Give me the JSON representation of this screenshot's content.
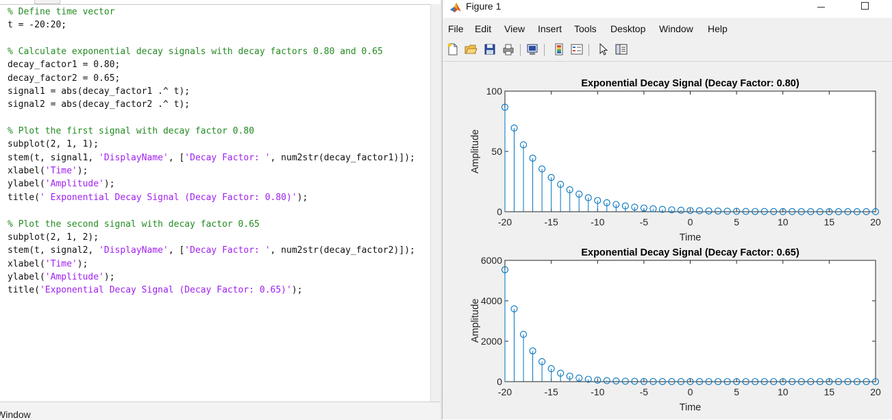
{
  "editor": {
    "lines": [
      [
        {
          "t": "% Define time vector",
          "c": "comment"
        }
      ],
      [
        {
          "t": "t = -20:20;",
          "c": "code"
        }
      ],
      [
        {
          "t": "",
          "c": "code"
        }
      ],
      [
        {
          "t": "% Calculate exponential decay signals with decay factors 0.80 and 0.65",
          "c": "comment"
        }
      ],
      [
        {
          "t": "decay_factor1 = 0.80;",
          "c": "code"
        }
      ],
      [
        {
          "t": "decay_factor2 = 0.65;",
          "c": "code"
        }
      ],
      [
        {
          "t": "signal1 = abs(decay_factor1 .^ t);",
          "c": "code"
        }
      ],
      [
        {
          "t": "signal2 = abs(decay_factor2 .^ t);",
          "c": "code"
        }
      ],
      [
        {
          "t": "",
          "c": "code"
        }
      ],
      [
        {
          "t": "% Plot the first signal with decay factor 0.80",
          "c": "comment"
        }
      ],
      [
        {
          "t": "subplot(2, 1, 1);",
          "c": "code"
        }
      ],
      [
        {
          "t": "stem(t, signal1, ",
          "c": "code"
        },
        {
          "t": "'DisplayName'",
          "c": "string"
        },
        {
          "t": ", [",
          "c": "code"
        },
        {
          "t": "'Decay Factor: '",
          "c": "string"
        },
        {
          "t": ", num2str(decay_factor1)]);",
          "c": "code"
        }
      ],
      [
        {
          "t": "xlabel(",
          "c": "code"
        },
        {
          "t": "'Time'",
          "c": "string"
        },
        {
          "t": ");",
          "c": "code"
        }
      ],
      [
        {
          "t": "ylabel(",
          "c": "code"
        },
        {
          "t": "'Amplitude'",
          "c": "string"
        },
        {
          "t": ");",
          "c": "code"
        }
      ],
      [
        {
          "t": "title(",
          "c": "code"
        },
        {
          "t": "' Exponential Decay Signal (Decay Factor: 0.80)'",
          "c": "string"
        },
        {
          "t": ");",
          "c": "code"
        }
      ],
      [
        {
          "t": "",
          "c": "code"
        }
      ],
      [
        {
          "t": "% Plot the second signal with decay factor 0.65",
          "c": "comment"
        }
      ],
      [
        {
          "t": "subplot(2, 1, 2);",
          "c": "code"
        }
      ],
      [
        {
          "t": "stem(t, signal2, ",
          "c": "code"
        },
        {
          "t": "'DisplayName'",
          "c": "string"
        },
        {
          "t": ", [",
          "c": "code"
        },
        {
          "t": "'Decay Factor: '",
          "c": "string"
        },
        {
          "t": ", num2str(decay_factor2)]);",
          "c": "code"
        }
      ],
      [
        {
          "t": "xlabel(",
          "c": "code"
        },
        {
          "t": "'Time'",
          "c": "string"
        },
        {
          "t": ");",
          "c": "code"
        }
      ],
      [
        {
          "t": "ylabel(",
          "c": "code"
        },
        {
          "t": "'Amplitude'",
          "c": "string"
        },
        {
          "t": ");",
          "c": "code"
        }
      ],
      [
        {
          "t": "title(",
          "c": "code"
        },
        {
          "t": "'Exponential Decay Signal (Decay Factor: 0.65)'",
          "c": "string"
        },
        {
          "t": ");",
          "c": "code"
        }
      ]
    ]
  },
  "command_window": {
    "label": "Window"
  },
  "figure": {
    "title": "Figure 1",
    "menu": [
      "File",
      "Edit",
      "View",
      "Insert",
      "Tools",
      "Desktop",
      "Window",
      "Help"
    ],
    "toolbar_icons": [
      "new-figure-icon",
      "open-file-icon",
      "save-icon",
      "print-icon",
      "link-plot-icon",
      "insert-colorbar-icon",
      "insert-legend-icon",
      "edit-plot-icon",
      "property-inspector-icon"
    ]
  },
  "colors": {
    "stem": "#0072bd",
    "comment": "#228b22",
    "string": "#a020f0"
  },
  "chart_data": [
    {
      "type": "stem",
      "title": "Exponential Decay Signal (Decay Factor: 0.80)",
      "xlabel": "Time",
      "ylabel": "Amplitude",
      "xlim": [
        -20,
        20
      ],
      "ylim": [
        0,
        100
      ],
      "xticks": [
        -20,
        -15,
        -10,
        -5,
        0,
        5,
        10,
        15,
        20
      ],
      "yticks": [
        0,
        50,
        100
      ],
      "x": [
        -20,
        -19,
        -18,
        -17,
        -16,
        -15,
        -14,
        -13,
        -12,
        -11,
        -10,
        -9,
        -8,
        -7,
        -6,
        -5,
        -4,
        -3,
        -2,
        -1,
        0,
        1,
        2,
        3,
        4,
        5,
        6,
        7,
        8,
        9,
        10,
        11,
        12,
        13,
        14,
        15,
        16,
        17,
        18,
        19,
        20
      ],
      "values": [
        86.7,
        69.4,
        55.5,
        44.4,
        35.5,
        28.4,
        22.7,
        18.2,
        14.6,
        11.6,
        9.31,
        7.45,
        5.96,
        4.77,
        3.81,
        3.05,
        2.44,
        1.95,
        1.56,
        1.25,
        1.0,
        0.8,
        0.64,
        0.512,
        0.41,
        0.328,
        0.262,
        0.21,
        0.168,
        0.134,
        0.107,
        0.086,
        0.069,
        0.055,
        0.044,
        0.035,
        0.028,
        0.023,
        0.018,
        0.014,
        0.012
      ]
    },
    {
      "type": "stem",
      "title": "Exponential Decay Signal (Decay Factor: 0.65)",
      "xlabel": "Time",
      "ylabel": "Amplitude",
      "xlim": [
        -20,
        20
      ],
      "ylim": [
        0,
        6000
      ],
      "xticks": [
        -20,
        -15,
        -10,
        -5,
        0,
        5,
        10,
        15,
        20
      ],
      "yticks": [
        0,
        2000,
        4000,
        6000
      ],
      "x": [
        -20,
        -19,
        -18,
        -17,
        -16,
        -15,
        -14,
        -13,
        -12,
        -11,
        -10,
        -9,
        -8,
        -7,
        -6,
        -5,
        -4,
        -3,
        -2,
        -1,
        0,
        1,
        2,
        3,
        4,
        5,
        6,
        7,
        8,
        9,
        10,
        11,
        12,
        13,
        14,
        15,
        16,
        17,
        18,
        19,
        20
      ],
      "values": [
        5538,
        3600,
        2340,
        1521,
        988.6,
        642.6,
        417.7,
        271.5,
        176.5,
        114.7,
        74.6,
        48.5,
        31.5,
        20.5,
        13.3,
        8.66,
        5.63,
        3.64,
        2.37,
        1.54,
        1.0,
        0.65,
        0.423,
        0.275,
        0.179,
        0.116,
        0.075,
        0.049,
        0.032,
        0.021,
        0.013,
        0.009,
        0.006,
        0.004,
        0.002,
        0.002,
        0.001,
        0.001,
        0.0,
        0.0,
        0.0
      ]
    }
  ]
}
